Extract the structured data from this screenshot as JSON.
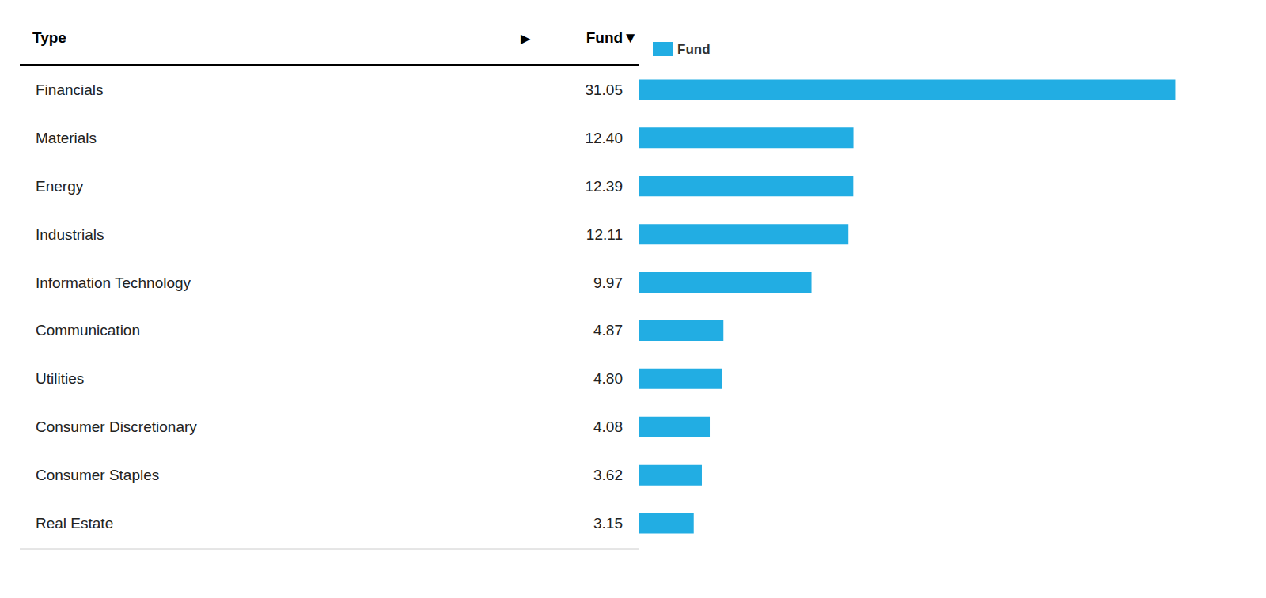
{
  "chart_data": {
    "type": "bar",
    "orientation": "horizontal",
    "annotations": [
      "Type",
      "▶",
      "Fund▼"
    ],
    "categories": [
      "Financials",
      "Materials",
      "Energy",
      "Industrials",
      "Information Technology",
      "Communication",
      "Utilities",
      "Consumer Discretionary",
      "Consumer Staples",
      "Real Estate"
    ],
    "series": [
      {
        "name": "Fund",
        "color": "#22ade3",
        "values": [
          31.05,
          12.4,
          12.39,
          12.11,
          9.97,
          4.87,
          4.8,
          4.08,
          3.62,
          3.15
        ],
        "value_labels": [
          "31.05",
          "12.40",
          "12.39",
          "12.11",
          "9.97",
          "4.87",
          "4.80",
          "4.08",
          "3.62",
          "3.15"
        ]
      }
    ],
    "xlim": [
      0,
      33
    ],
    "grid": false,
    "legend": "top",
    "data_labels": true,
    "tick_labels": "y"
  }
}
